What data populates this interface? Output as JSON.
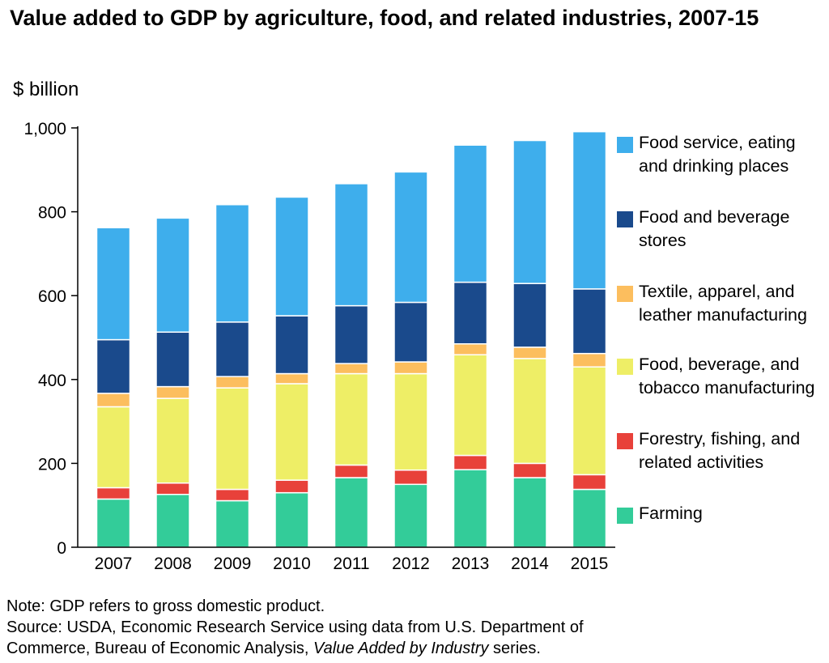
{
  "title": "Value added to GDP by agriculture, food, and related industries, 2007-15",
  "chart_data": {
    "type": "bar",
    "stacked": true,
    "title": "Value added to GDP by agriculture, food, and related industries, 2007-15",
    "ylabel": "$ billion",
    "xlabel": "",
    "ylim": [
      0,
      1000
    ],
    "yticks": [
      0,
      200,
      400,
      600,
      800,
      1000
    ],
    "ytick_labels": [
      "0",
      "200",
      "400",
      "600",
      "800",
      "1,000"
    ],
    "grid": false,
    "legend_position": "right",
    "categories": [
      "2007",
      "2008",
      "2009",
      "2010",
      "2011",
      "2012",
      "2013",
      "2014",
      "2015"
    ],
    "series": [
      {
        "name": "Farming",
        "color": "#33cc99",
        "values": [
          115,
          126,
          111,
          130,
          166,
          150,
          185,
          166,
          138
        ]
      },
      {
        "name": "Forestry, fishing, and related activities",
        "color": "#e8413a",
        "values": [
          27,
          27,
          27,
          30,
          30,
          34,
          34,
          34,
          35
        ]
      },
      {
        "name": "Food, beverage, and tobacco manufacturing",
        "color": "#eeee66",
        "values": [
          193,
          202,
          242,
          230,
          218,
          230,
          240,
          250,
          257
        ]
      },
      {
        "name": "Textile, apparel, and leather manufacturing",
        "color": "#fcbe5e",
        "values": [
          32,
          28,
          27,
          24,
          24,
          28,
          26,
          27,
          32
        ]
      },
      {
        "name": "Food and beverage stores",
        "color": "#1a4a8c",
        "values": [
          128,
          130,
          130,
          138,
          138,
          142,
          147,
          152,
          154
        ]
      },
      {
        "name": "Food service, eating and drinking places",
        "color": "#3eaeec",
        "values": [
          267,
          272,
          280,
          283,
          291,
          311,
          327,
          341,
          375
        ]
      }
    ]
  },
  "legend": {
    "items": [
      {
        "label": "Food service, eating and drinking places",
        "color": "#3eaeec"
      },
      {
        "label": "Food and beverage stores",
        "color": "#1a4a8c"
      },
      {
        "label": "Textile, apparel, and leather manufacturing",
        "color": "#fcbe5e"
      },
      {
        "label": "Food, beverage, and tobacco manufacturing",
        "color": "#eeee66"
      },
      {
        "label": "Forestry, fishing, and related activities",
        "color": "#e8413a"
      },
      {
        "label": "Farming",
        "color": "#33cc99"
      }
    ]
  },
  "notes": {
    "note": "Note: GDP refers to gross domestic product.",
    "source_line1": "Source: USDA, Economic Research Service using data from U.S. Department of",
    "source_line2_prefix": "Commerce, Bureau of Economic Analysis, ",
    "source_line2_italic": "Value Added by Industry",
    "source_line2_suffix": " series."
  }
}
